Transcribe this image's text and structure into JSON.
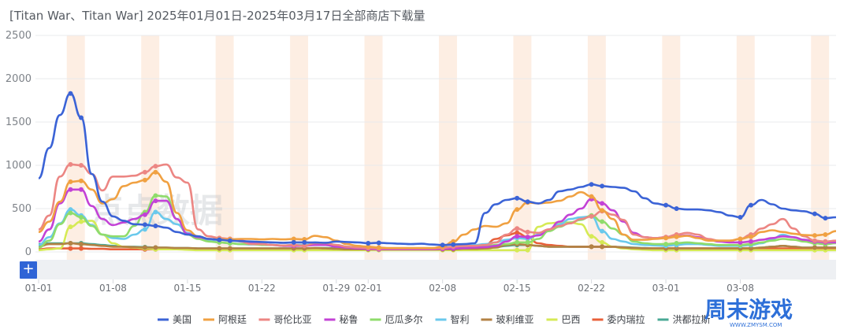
{
  "header": {
    "title": "[Titan War、Titan War] 2025年01月01日-2025年03月17日全部商店下载量"
  },
  "toolbar": {
    "add_label": "+"
  },
  "watermark": {
    "text": "点点数据"
  },
  "logo": {
    "text": "周末游戏",
    "sub": "WWW.ZMYSM.COM",
    "color": "#2d6fd8"
  },
  "chart_data": {
    "type": "line",
    "x": [
      "01-01",
      "01-02",
      "01-03",
      "01-04",
      "01-05",
      "01-06",
      "01-07",
      "01-08",
      "01-09",
      "01-10",
      "01-11",
      "01-12",
      "01-13",
      "01-14",
      "01-15",
      "01-16",
      "01-17",
      "01-18",
      "01-19",
      "01-20",
      "01-21",
      "01-22",
      "01-23",
      "01-24",
      "01-25",
      "01-26",
      "01-27",
      "01-28",
      "01-29",
      "01-30",
      "01-31",
      "02-01",
      "02-02",
      "02-03",
      "02-04",
      "02-05",
      "02-06",
      "02-07",
      "02-08",
      "02-09",
      "02-10",
      "02-11",
      "02-12",
      "02-13",
      "02-14",
      "02-15",
      "02-16",
      "02-17",
      "02-18",
      "02-19",
      "02-20",
      "02-21",
      "02-22",
      "02-23",
      "02-24",
      "02-25",
      "02-26",
      "02-27",
      "02-28",
      "03-01",
      "03-02",
      "03-03",
      "03-04",
      "03-05",
      "03-06",
      "03-07",
      "03-08",
      "03-09",
      "03-10",
      "03-11",
      "03-12",
      "03-13",
      "03-14",
      "03-15",
      "03-16",
      "03-17"
    ],
    "x_tick_labels": [
      "01-01",
      "01-08",
      "01-15",
      "01-22",
      "01-29",
      "02-01",
      "02-08",
      "02-15",
      "02-22",
      "03-01",
      "03-08"
    ],
    "y_tick_labels": [
      "0",
      "500",
      "1000",
      "1500",
      "2000",
      "2500"
    ],
    "ylim": [
      0,
      2500
    ],
    "weekend_highlight_color": "#fdeee3",
    "grid": true,
    "legend_position": "bottom",
    "series": [
      {
        "name": "美国",
        "color": "#3b63d6",
        "values": [
          850,
          1200,
          1580,
          1830,
          1550,
          900,
          580,
          410,
          360,
          320,
          315,
          300,
          280,
          230,
          200,
          180,
          150,
          140,
          130,
          125,
          120,
          115,
          110,
          105,
          110,
          110,
          108,
          105,
          120,
          115,
          110,
          100,
          105,
          100,
          95,
          90,
          95,
          85,
          80,
          85,
          90,
          100,
          450,
          550,
          600,
          620,
          580,
          560,
          600,
          700,
          720,
          750,
          780,
          760,
          750,
          740,
          700,
          620,
          560,
          540,
          500,
          490,
          490,
          480,
          460,
          420,
          400,
          540,
          600,
          550,
          500,
          480,
          470,
          440,
          390,
          400
        ]
      },
      {
        "name": "阿根廷",
        "color": "#f0a142",
        "values": [
          230,
          350,
          580,
          810,
          820,
          720,
          560,
          610,
          760,
          800,
          830,
          920,
          810,
          450,
          250,
          180,
          150,
          145,
          145,
          150,
          150,
          145,
          150,
          145,
          150,
          145,
          185,
          170,
          130,
          90,
          70,
          60,
          50,
          45,
          45,
          45,
          45,
          45,
          60,
          120,
          200,
          260,
          300,
          290,
          330,
          490,
          570,
          560,
          570,
          590,
          640,
          690,
          640,
          480,
          380,
          200,
          140,
          140,
          150,
          160,
          175,
          185,
          160,
          130,
          130,
          130,
          150,
          175,
          230,
          250,
          230,
          210,
          195,
          190,
          200,
          240
        ]
      },
      {
        "name": "哥伦比亚",
        "color": "#ec8683",
        "values": [
          260,
          420,
          870,
          1010,
          1000,
          900,
          710,
          870,
          870,
          880,
          920,
          990,
          1010,
          860,
          800,
          260,
          180,
          160,
          150,
          120,
          90,
          90,
          80,
          75,
          80,
          70,
          100,
          100,
          80,
          60,
          50,
          45,
          40,
          40,
          40,
          40,
          40,
          40,
          45,
          60,
          70,
          70,
          80,
          110,
          200,
          270,
          230,
          220,
          260,
          300,
          330,
          380,
          410,
          470,
          430,
          370,
          200,
          170,
          160,
          170,
          200,
          220,
          200,
          150,
          130,
          130,
          150,
          200,
          270,
          320,
          380,
          270,
          180,
          130,
          120,
          130
        ]
      },
      {
        "name": "秘鲁",
        "color": "#c342d6",
        "values": [
          120,
          260,
          560,
          720,
          720,
          530,
          380,
          310,
          340,
          380,
          430,
          590,
          590,
          380,
          210,
          170,
          150,
          140,
          150,
          130,
          110,
          90,
          80,
          70,
          70,
          70,
          80,
          80,
          60,
          50,
          40,
          35,
          30,
          30,
          30,
          30,
          30,
          30,
          35,
          40,
          45,
          50,
          55,
          70,
          120,
          180,
          170,
          190,
          260,
          350,
          430,
          500,
          610,
          560,
          480,
          350,
          220,
          170,
          160,
          170,
          180,
          190,
          170,
          140,
          120,
          110,
          110,
          120,
          140,
          160,
          180,
          170,
          140,
          120,
          110,
          110
        ]
      },
      {
        "name": "厄瓜多尔",
        "color": "#8fdc6b",
        "values": [
          50,
          130,
          320,
          450,
          400,
          300,
          200,
          180,
          180,
          300,
          460,
          650,
          640,
          380,
          200,
          150,
          120,
          110,
          100,
          90,
          90,
          80,
          80,
          70,
          75,
          70,
          90,
          80,
          60,
          50,
          45,
          40,
          35,
          35,
          35,
          35,
          35,
          35,
          40,
          50,
          55,
          60,
          65,
          80,
          90,
          110,
          110,
          150,
          240,
          290,
          340,
          370,
          420,
          350,
          270,
          200,
          120,
          100,
          90,
          90,
          100,
          110,
          100,
          90,
          80,
          80,
          80,
          90,
          110,
          130,
          150,
          140,
          120,
          100,
          90,
          100
        ]
      },
      {
        "name": "智利",
        "color": "#6ac9ec",
        "values": [
          80,
          170,
          330,
          490,
          420,
          310,
          200,
          160,
          150,
          200,
          260,
          460,
          380,
          320,
          220,
          160,
          130,
          110,
          100,
          90,
          85,
          85,
          80,
          75,
          80,
          80,
          110,
          100,
          80,
          60,
          50,
          45,
          40,
          40,
          40,
          40,
          40,
          40,
          50,
          60,
          70,
          80,
          90,
          110,
          140,
          160,
          150,
          200,
          250,
          320,
          380,
          400,
          410,
          240,
          150,
          120,
          90,
          80,
          75,
          70,
          80,
          90,
          90,
          80,
          70,
          70,
          70,
          80,
          100,
          150,
          200,
          170,
          140,
          120,
          100,
          110
        ]
      },
      {
        "name": "玻利维亚",
        "color": "#b38244",
        "values": [
          60,
          90,
          90,
          100,
          90,
          80,
          70,
          60,
          60,
          55,
          50,
          50,
          50,
          45,
          45,
          40,
          40,
          40,
          40,
          40,
          40,
          40,
          40,
          40,
          40,
          40,
          45,
          40,
          35,
          30,
          30,
          30,
          30,
          30,
          30,
          30,
          30,
          30,
          30,
          30,
          35,
          35,
          40,
          50,
          80,
          90,
          80,
          70,
          60,
          60,
          60,
          60,
          60,
          60,
          60,
          50,
          45,
          40,
          40,
          40,
          40,
          40,
          40,
          40,
          40,
          40,
          40,
          40,
          50,
          60,
          70,
          60,
          50,
          50,
          50,
          50
        ]
      },
      {
        "name": "巴西",
        "color": "#d6ea55",
        "values": [
          20,
          30,
          40,
          290,
          350,
          360,
          200,
          100,
          60,
          50,
          40,
          30,
          30,
          30,
          25,
          20,
          20,
          20,
          20,
          20,
          20,
          20,
          20,
          20,
          20,
          20,
          20,
          20,
          20,
          20,
          20,
          20,
          20,
          20,
          20,
          20,
          20,
          20,
          20,
          20,
          20,
          20,
          20,
          20,
          20,
          20,
          20,
          290,
          330,
          340,
          340,
          320,
          180,
          110,
          60,
          40,
          30,
          25,
          20,
          20,
          20,
          20,
          20,
          20,
          20,
          20,
          20,
          20,
          20,
          20,
          20,
          20,
          20,
          20,
          20,
          20
        ]
      },
      {
        "name": "委内瑞拉",
        "color": "#e8603a",
        "values": [
          30,
          40,
          40,
          40,
          40,
          35,
          35,
          30,
          30,
          30,
          30,
          30,
          30,
          30,
          30,
          30,
          30,
          30,
          30,
          30,
          30,
          30,
          30,
          30,
          30,
          30,
          30,
          30,
          30,
          30,
          30,
          30,
          30,
          30,
          30,
          30,
          30,
          30,
          30,
          40,
          50,
          60,
          80,
          150,
          190,
          220,
          170,
          100,
          80,
          70,
          60,
          60,
          60,
          60,
          60,
          50,
          45,
          40,
          40,
          40,
          40,
          40,
          40,
          40,
          40,
          40,
          40,
          40,
          40,
          40,
          40,
          40,
          40,
          40,
          40,
          40
        ]
      },
      {
        "name": "洪都拉斯",
        "color": "#49a895",
        "values": [
          90,
          100,
          100,
          100,
          100,
          90,
          80,
          70,
          60,
          60,
          55,
          50,
          50,
          45,
          45,
          40,
          40,
          40,
          40,
          40,
          40,
          40,
          40,
          40,
          40,
          40,
          45,
          45,
          40,
          35,
          30,
          30,
          30,
          30,
          30,
          30,
          30,
          30,
          30,
          30,
          35,
          40,
          45,
          55,
          70,
          80,
          80,
          70,
          60,
          60,
          60,
          60,
          60,
          60,
          60,
          55,
          50,
          45,
          40,
          40,
          40,
          40,
          40,
          40,
          40,
          40,
          40,
          40,
          50,
          60,
          70,
          60,
          50,
          50,
          50,
          50
        ]
      }
    ]
  }
}
